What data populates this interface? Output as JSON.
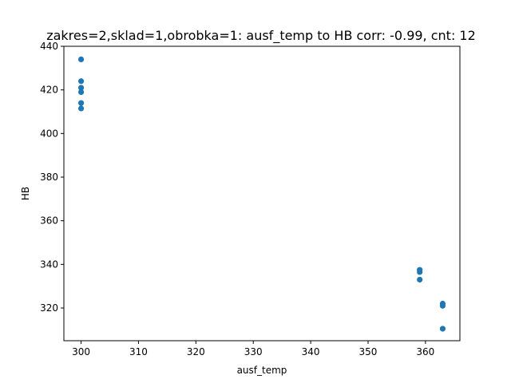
{
  "chart_data": {
    "type": "scatter",
    "title": "zakres=2,sklad=1,obrobka=1: ausf_temp to HB corr: -0.99, cnt: 12",
    "xlabel": "ausf_temp",
    "ylabel": "HB",
    "xlim": [
      297,
      366
    ],
    "ylim": [
      305,
      440
    ],
    "xticks": [
      300,
      310,
      320,
      330,
      340,
      350,
      360
    ],
    "yticks": [
      320,
      340,
      360,
      380,
      400,
      420,
      440
    ],
    "grid": false,
    "color": "#1f77b4",
    "points": [
      {
        "x": 300,
        "y": 434
      },
      {
        "x": 300,
        "y": 424
      },
      {
        "x": 300,
        "y": 421
      },
      {
        "x": 300,
        "y": 419
      },
      {
        "x": 300,
        "y": 414
      },
      {
        "x": 300,
        "y": 411.5
      },
      {
        "x": 359,
        "y": 337.5
      },
      {
        "x": 359,
        "y": 336.5
      },
      {
        "x": 359,
        "y": 333
      },
      {
        "x": 363,
        "y": 322
      },
      {
        "x": 363,
        "y": 321
      },
      {
        "x": 363,
        "y": 310.5
      }
    ]
  }
}
